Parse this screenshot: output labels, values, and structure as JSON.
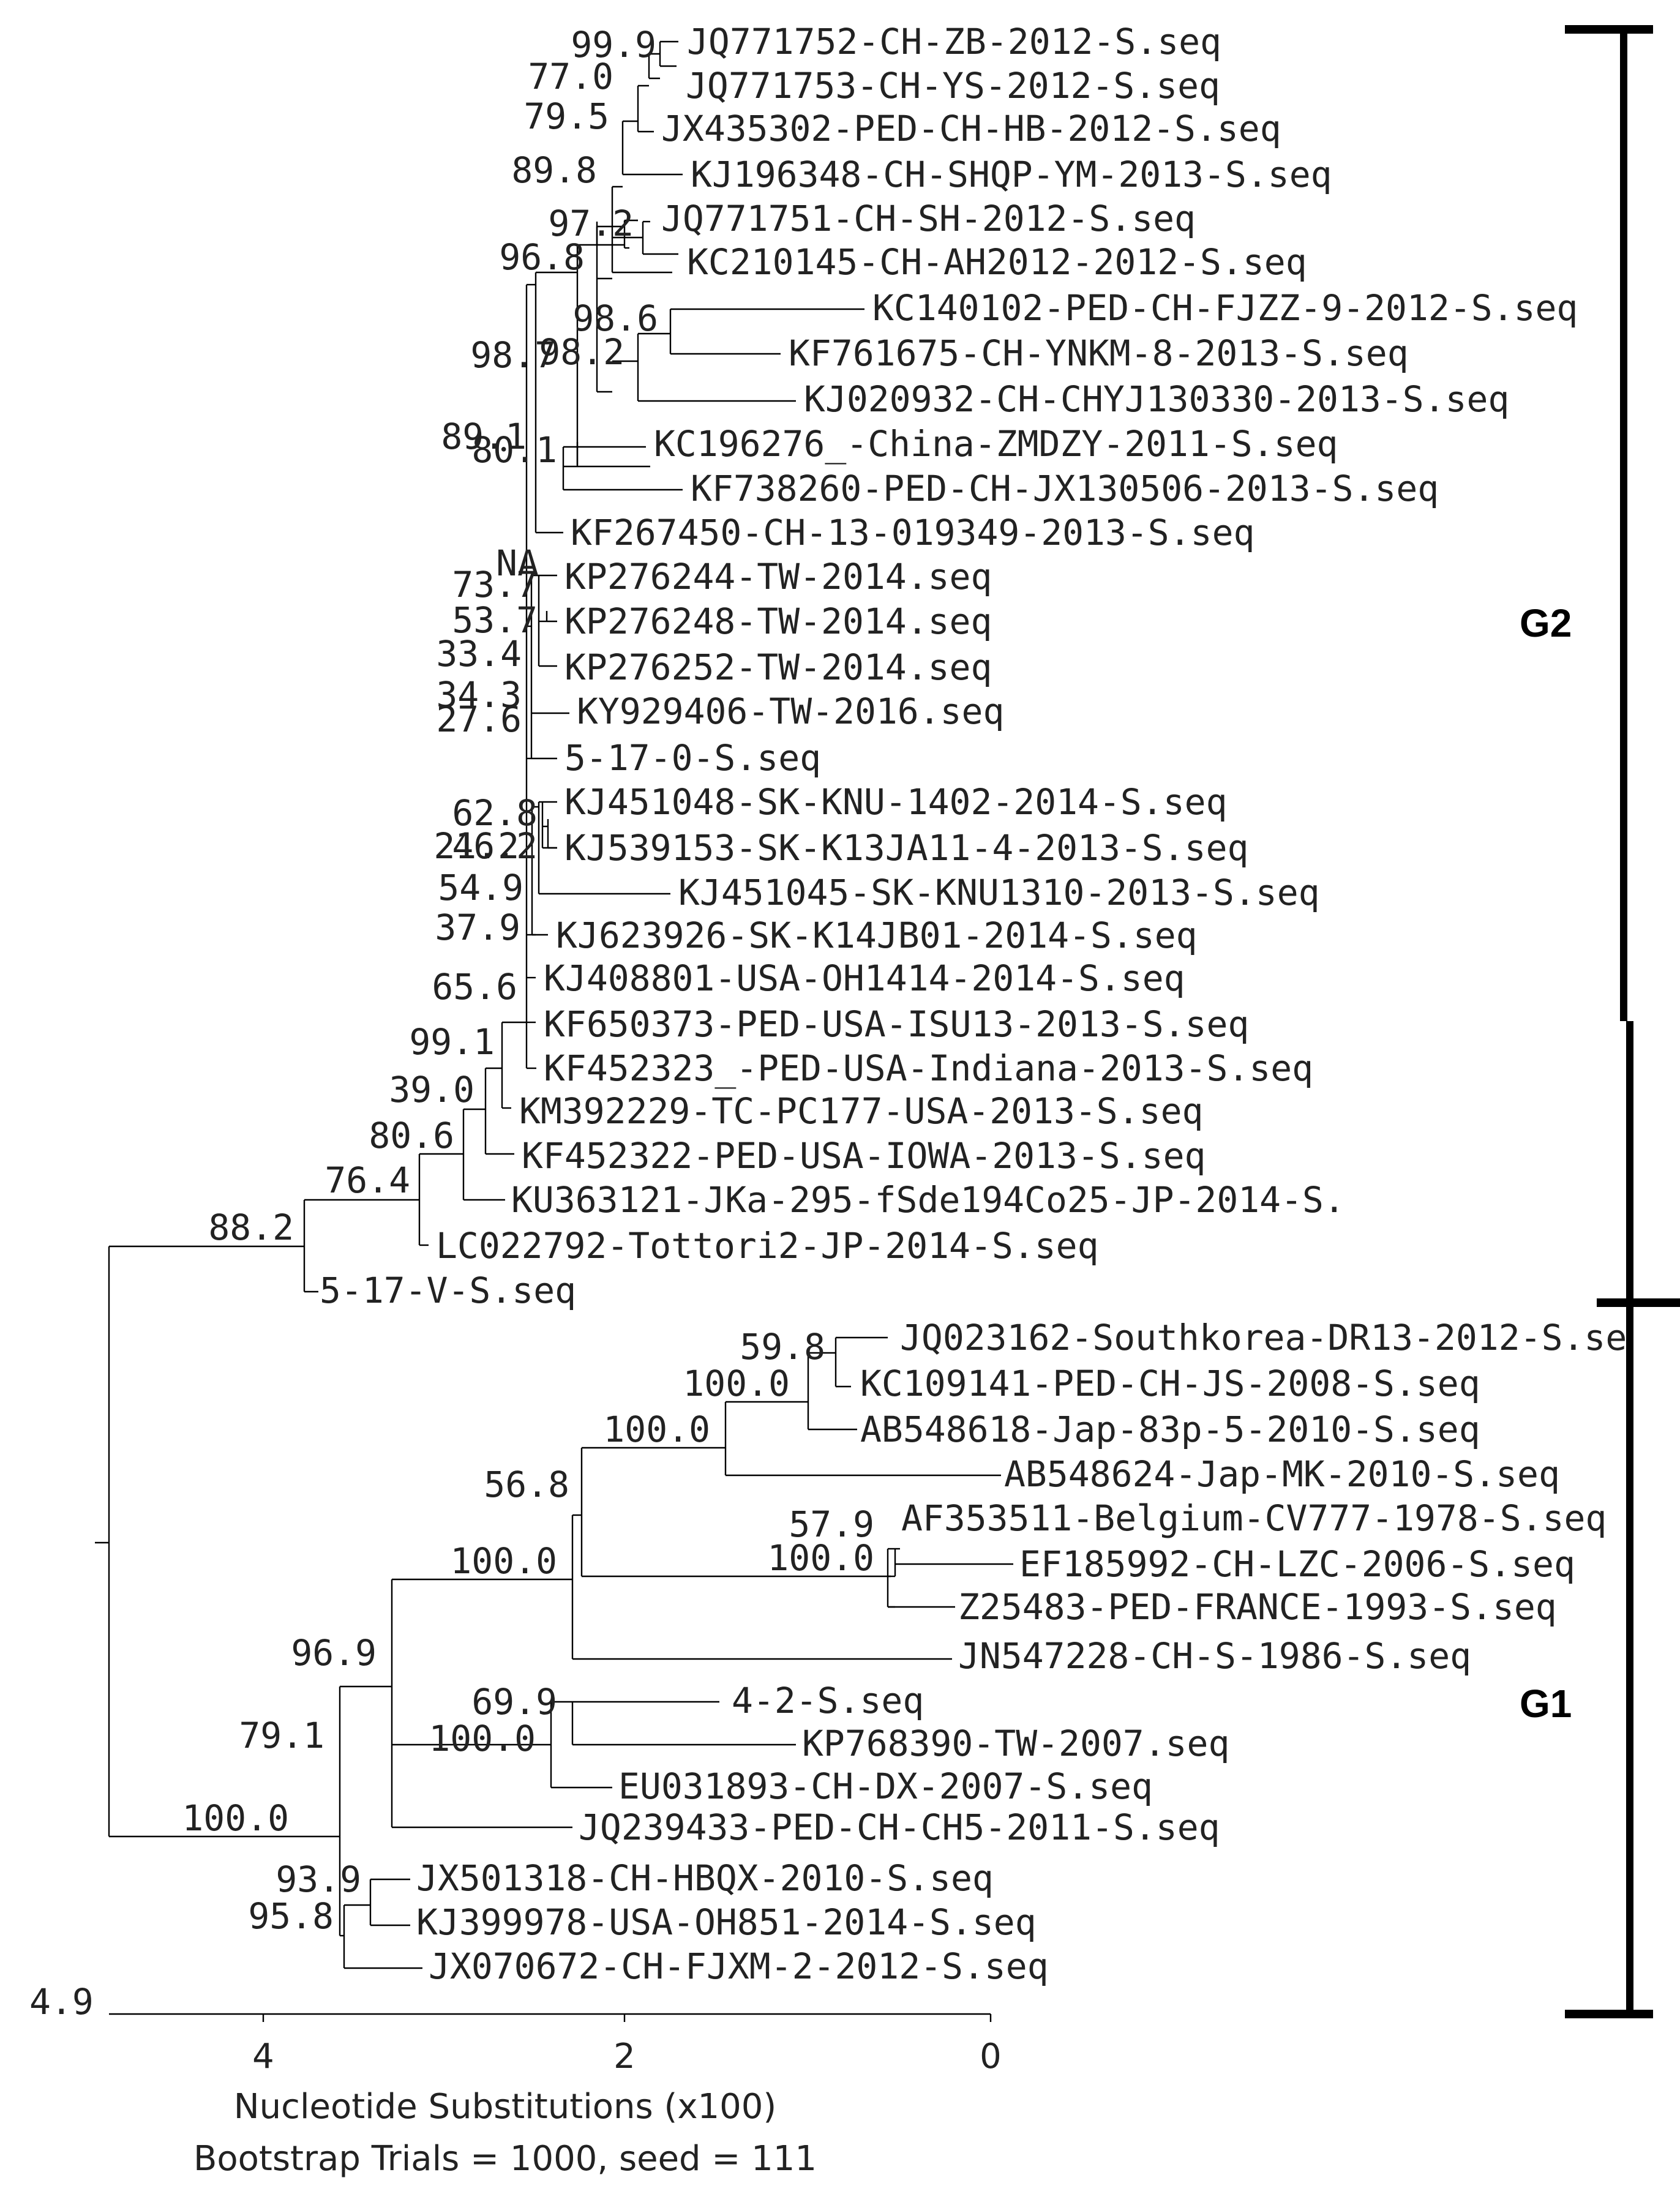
{
  "leaves": [
    {
      "id": "t1",
      "label": "JQ771752-CH-ZB-2012-S.seq"
    },
    {
      "id": "t2",
      "label": "JQ771753-CH-YS-2012-S.seq"
    },
    {
      "id": "t3",
      "label": "JX435302-PED-CH-HB-2012-S.seq"
    },
    {
      "id": "t4",
      "label": "KJ196348-CH-SHQP-YM-2013-S.seq"
    },
    {
      "id": "t5",
      "label": "JQ771751-CH-SH-2012-S.seq"
    },
    {
      "id": "t6",
      "label": "KC210145-CH-AH2012-2012-S.seq"
    },
    {
      "id": "t7",
      "label": "KC140102-PED-CH-FJZZ-9-2012-S.seq"
    },
    {
      "id": "t8",
      "label": "KF761675-CH-YNKM-8-2013-S.seq"
    },
    {
      "id": "t9",
      "label": "KJ020932-CH-CHYJ130330-2013-S.seq"
    },
    {
      "id": "t10",
      "label": "KC196276_-China-ZMDZY-2011-S.seq"
    },
    {
      "id": "t11",
      "label": "KF738260-PED-CH-JX130506-2013-S.seq"
    },
    {
      "id": "t12",
      "label": "KF267450-CH-13-019349-2013-S.seq"
    },
    {
      "id": "t13",
      "label": "KP276244-TW-2014.seq"
    },
    {
      "id": "t14",
      "label": "KP276248-TW-2014.seq"
    },
    {
      "id": "t15",
      "label": "KP276252-TW-2014.seq"
    },
    {
      "id": "t16",
      "label": "KY929406-TW-2016.seq"
    },
    {
      "id": "t17",
      "label": "5-17-0-S.seq"
    },
    {
      "id": "t18",
      "label": "KJ451048-SK-KNU-1402-2014-S.seq"
    },
    {
      "id": "t19",
      "label": "KJ539153-SK-K13JA11-4-2013-S.seq"
    },
    {
      "id": "t20",
      "label": "KJ451045-SK-KNU1310-2013-S.seq"
    },
    {
      "id": "t21",
      "label": "KJ623926-SK-K14JB01-2014-S.seq"
    },
    {
      "id": "t22",
      "label": "KJ408801-USA-OH1414-2014-S.seq"
    },
    {
      "id": "t23",
      "label": "KF650373-PED-USA-ISU13-2013-S.seq"
    },
    {
      "id": "t24",
      "label": "KF452323_-PED-USA-Indiana-2013-S.seq"
    },
    {
      "id": "t25",
      "label": "KM392229-TC-PC177-USA-2013-S.seq"
    },
    {
      "id": "t26",
      "label": "KF452322-PED-USA-IOWA-2013-S.seq"
    },
    {
      "id": "t27",
      "label": "KU363121-JKa-295-fSde194Co25-JP-2014-S."
    },
    {
      "id": "t28",
      "label": "LC022792-Tottori2-JP-2014-S.seq"
    },
    {
      "id": "t29",
      "label": "5-17-V-S.seq"
    },
    {
      "id": "t30",
      "label": "JQ023162-Southkorea-DR13-2012-S.se"
    },
    {
      "id": "t31",
      "label": "KC109141-PED-CH-JS-2008-S.seq"
    },
    {
      "id": "t32",
      "label": "AB548618-Jap-83p-5-2010-S.seq"
    },
    {
      "id": "t33",
      "label": "AB548624-Jap-MK-2010-S.seq"
    },
    {
      "id": "t34",
      "label": "AF353511-Belgium-CV777-1978-S.seq"
    },
    {
      "id": "t35",
      "label": "EF185992-CH-LZC-2006-S.seq"
    },
    {
      "id": "t36",
      "label": "Z25483-PED-FRANCE-1993-S.seq"
    },
    {
      "id": "t37",
      "label": "JN547228-CH-S-1986-S.seq"
    },
    {
      "id": "t38",
      "label": "4-2-S.seq"
    },
    {
      "id": "t39",
      "label": "KP768390-TW-2007.seq"
    },
    {
      "id": "t40",
      "label": "EU031893-CH-DX-2007-S.seq"
    },
    {
      "id": "t41",
      "label": "JQ239433-PED-CH-CH5-2011-S.seq"
    },
    {
      "id": "t42",
      "label": "JX501318-CH-HBQX-2010-S.seq"
    },
    {
      "id": "t43",
      "label": "KJ399978-USA-OH851-2014-S.seq"
    },
    {
      "id": "t44",
      "label": "JX070672-CH-FJXM-2-2012-S.seq"
    }
  ],
  "bootstrap": [
    {
      "id": "b1",
      "value": "99.9"
    },
    {
      "id": "b2",
      "value": "77.0"
    },
    {
      "id": "b3",
      "value": "79.5"
    },
    {
      "id": "b4",
      "value": "89.8"
    },
    {
      "id": "b5",
      "value": "97.2"
    },
    {
      "id": "b6",
      "value": "96.8"
    },
    {
      "id": "b7",
      "value": "98.6"
    },
    {
      "id": "b8",
      "value": "98.7"
    },
    {
      "id": "b9",
      "value": "98.2"
    },
    {
      "id": "b10",
      "value": "89.1"
    },
    {
      "id": "b11",
      "value": "80.1"
    },
    {
      "id": "b12",
      "value": "NA"
    },
    {
      "id": "b13",
      "value": "73.7"
    },
    {
      "id": "b14",
      "value": "53.7"
    },
    {
      "id": "b15",
      "value": "33.4"
    },
    {
      "id": "b16",
      "value": "34.3"
    },
    {
      "id": "b17",
      "value": "27.6"
    },
    {
      "id": "b18",
      "value": "62.8"
    },
    {
      "id": "b19",
      "value": "46.2"
    },
    {
      "id": "b20",
      "value": "21.2"
    },
    {
      "id": "b21",
      "value": "54.9"
    },
    {
      "id": "b22",
      "value": "37.9"
    },
    {
      "id": "b23",
      "value": "65.6"
    },
    {
      "id": "b24",
      "value": "99.1"
    },
    {
      "id": "b25",
      "value": "39.0"
    },
    {
      "id": "b26",
      "value": "80.6"
    },
    {
      "id": "b27",
      "value": "76.4"
    },
    {
      "id": "b28",
      "value": "88.2"
    },
    {
      "id": "b29",
      "value": "59.8"
    },
    {
      "id": "b30",
      "value": "100.0"
    },
    {
      "id": "b31",
      "value": "100.0"
    },
    {
      "id": "b32",
      "value": "56.8"
    },
    {
      "id": "b33",
      "value": "57.9"
    },
    {
      "id": "b34",
      "value": "100.0"
    },
    {
      "id": "b35",
      "value": "100.0"
    },
    {
      "id": "b36",
      "value": "96.9"
    },
    {
      "id": "b37",
      "value": "69.9"
    },
    {
      "id": "b38",
      "value": "100.0"
    },
    {
      "id": "b39",
      "value": "79.1"
    },
    {
      "id": "b40",
      "value": "100.0"
    },
    {
      "id": "b41",
      "value": "93.9"
    },
    {
      "id": "b42",
      "value": "95.8"
    }
  ],
  "groups": {
    "g2": "G2",
    "g1": "G1"
  },
  "axis": {
    "start_label": "4.9",
    "ticks": [
      {
        "value": "4"
      },
      {
        "value": "2"
      },
      {
        "value": "0"
      }
    ],
    "title": "Nucleotide Substitutions (x100)",
    "bootstrap_note": "Bootstrap Trials = 1000, seed = 111"
  },
  "colors": {
    "branch": "#000000",
    "text": "#222222"
  }
}
